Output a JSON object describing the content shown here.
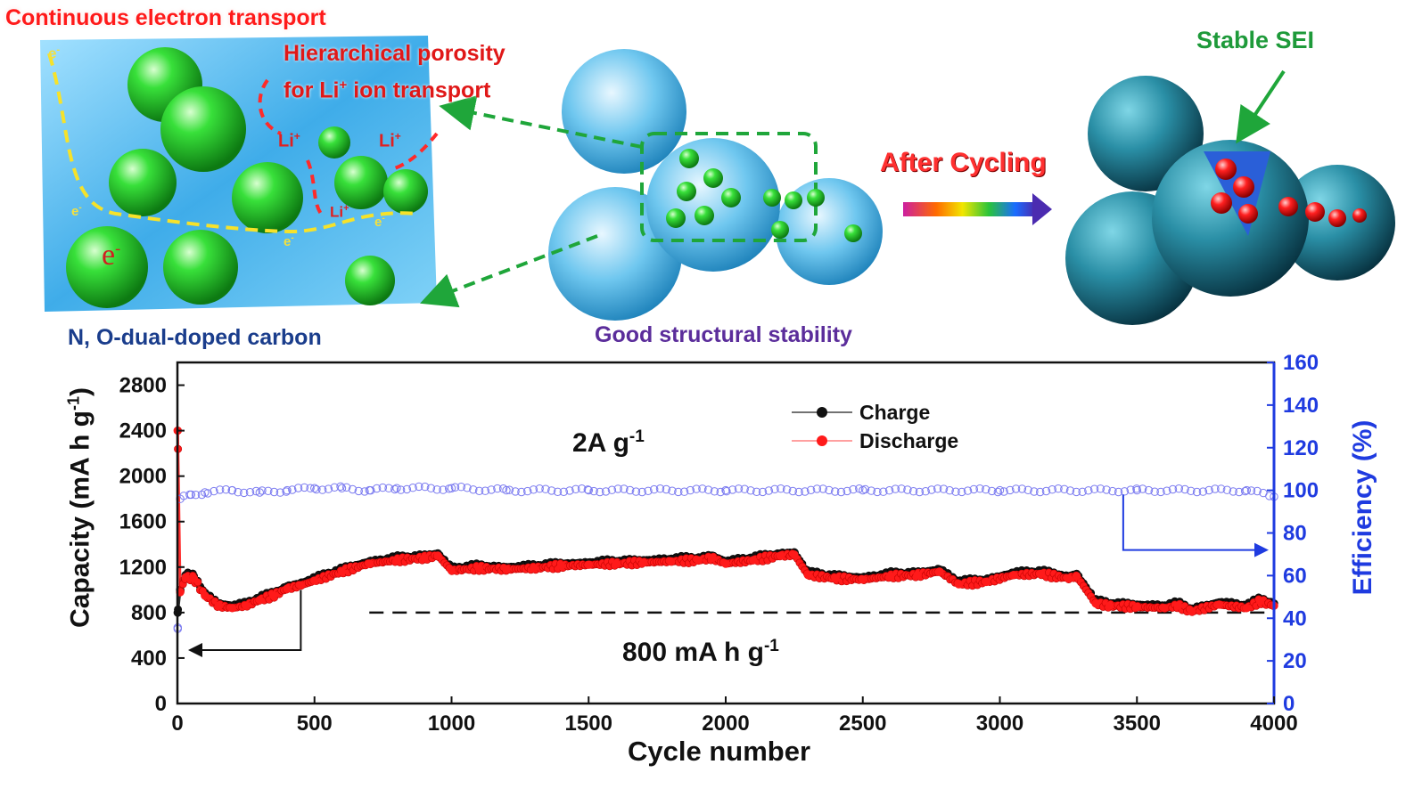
{
  "illustration": {
    "top_left_title": "Continuous electron transport",
    "porosity_line1": "Hierarchical porosity",
    "porosity_line2": "for Li",
    "porosity_sup": "+",
    "porosity_line2_tail": " ion transport",
    "carbon_label": "N, O-dual-doped carbon",
    "stability_label": "Good structural stability",
    "after_cycling": "After Cycling",
    "sei_label": "Stable SEI",
    "li_ion": "Li",
    "li_sup": "+",
    "electron": "e",
    "electron_sup": "-",
    "colors": {
      "particle": "#22c02a",
      "core_after": "#e41010",
      "shell": "#45b4e6",
      "shell_after": "#1f7e96"
    }
  },
  "chart_data": {
    "type": "scatter",
    "xlabel": "Cycle number",
    "ylabel_left": "Capacity (mA h g",
    "ylabel_left_sup": "-1",
    "ylabel_left_close": ")",
    "ylabel_right": "Efficiency (%)",
    "xlim": [
      0,
      4000
    ],
    "ylim_left": [
      0,
      3000
    ],
    "ylim_right": [
      0,
      160
    ],
    "xticks": [
      0,
      500,
      1000,
      1500,
      2000,
      2500,
      3000,
      3500,
      4000
    ],
    "yticks_left": [
      0,
      400,
      800,
      1200,
      1600,
      2000,
      2400,
      2800
    ],
    "yticks_right": [
      0,
      20,
      40,
      60,
      80,
      100,
      120,
      140,
      160
    ],
    "current_density_main": "2A g",
    "current_density_sup": "-1",
    "reference_line_value": 800,
    "reference_label_main": "800 mA h g",
    "reference_label_sup": "-1",
    "legend": [
      {
        "name": "Charge",
        "color": "#111111"
      },
      {
        "name": "Discharge",
        "color": "#ff1a1a"
      }
    ],
    "series": [
      {
        "name": "Charge",
        "axis": "left",
        "color": "#111111",
        "x": [
          1,
          10,
          30,
          60,
          100,
          150,
          200,
          250,
          300,
          350,
          400,
          450,
          500,
          600,
          700,
          800,
          900,
          950,
          1000,
          1100,
          1200,
          1300,
          1400,
          1500,
          1600,
          1700,
          1800,
          1900,
          1950,
          2000,
          2100,
          2200,
          2250,
          2300,
          2400,
          2500,
          2600,
          2700,
          2780,
          2850,
          2950,
          3050,
          3150,
          3250,
          3280,
          3350,
          3400,
          3500,
          3600,
          3650,
          3700,
          3800,
          3900,
          3950,
          4000
        ],
        "y": [
          800,
          1000,
          1130,
          1120,
          970,
          880,
          860,
          880,
          930,
          970,
          1030,
          1060,
          1100,
          1180,
          1250,
          1280,
          1300,
          1320,
          1190,
          1210,
          1200,
          1210,
          1230,
          1240,
          1250,
          1260,
          1270,
          1280,
          1300,
          1250,
          1280,
          1320,
          1330,
          1150,
          1120,
          1110,
          1140,
          1150,
          1180,
          1070,
          1090,
          1150,
          1160,
          1120,
          1140,
          900,
          880,
          870,
          860,
          880,
          830,
          890,
          860,
          920,
          880
        ]
      },
      {
        "name": "Discharge",
        "axis": "left",
        "color": "#ff1a1a",
        "x": [
          1,
          10,
          30,
          60,
          100,
          150,
          200,
          250,
          300,
          350,
          400,
          450,
          500,
          600,
          700,
          800,
          900,
          950,
          1000,
          1100,
          1200,
          1300,
          1400,
          1500,
          1600,
          1700,
          1800,
          1900,
          1950,
          2000,
          2100,
          2200,
          2250,
          2300,
          2400,
          2500,
          2600,
          2700,
          2780,
          2850,
          2950,
          3050,
          3150,
          3250,
          3280,
          3350,
          3400,
          3500,
          3600,
          3650,
          3700,
          3800,
          3900,
          3950,
          4000
        ],
        "y": [
          2400,
          980,
          1110,
          1100,
          950,
          860,
          840,
          860,
          910,
          950,
          1010,
          1040,
          1080,
          1160,
          1230,
          1260,
          1280,
          1300,
          1170,
          1190,
          1180,
          1190,
          1210,
          1220,
          1230,
          1240,
          1250,
          1260,
          1280,
          1230,
          1260,
          1300,
          1310,
          1130,
          1100,
          1090,
          1120,
          1130,
          1160,
          1050,
          1070,
          1130,
          1140,
          1100,
          1120,
          880,
          860,
          850,
          840,
          860,
          810,
          870,
          840,
          900,
          860
        ]
      },
      {
        "name": "Efficiency",
        "axis": "right",
        "color": "#7a7af0",
        "x": [
          1,
          10,
          50,
          100,
          200,
          300,
          400,
          500,
          600,
          700,
          800,
          1000,
          1200,
          1500,
          2000,
          2500,
          3000,
          3500,
          3900,
          4000
        ],
        "y": [
          35,
          96,
          98,
          99,
          100,
          99,
          100,
          101,
          101,
          100,
          101,
          101,
          100,
          100,
          100,
          100,
          100,
          100,
          100,
          97
        ]
      }
    ]
  }
}
